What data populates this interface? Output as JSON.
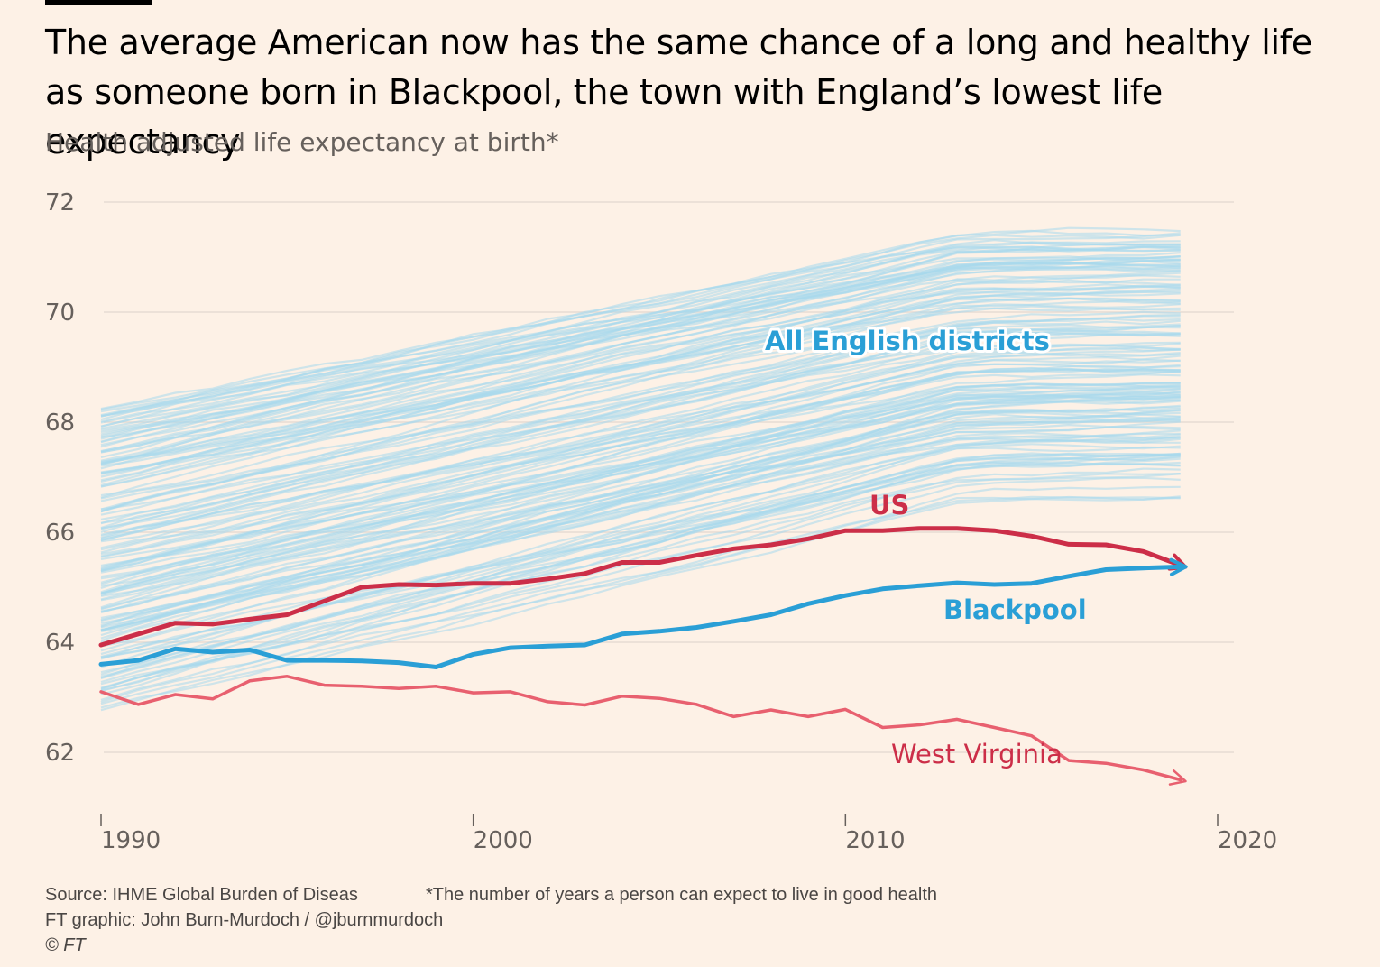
{
  "header": {
    "title": "The average American now has the same chance of a long and healthy life as someone born in Blackpool, the town with England’s lowest life expectancy",
    "subtitle": "Health adjusted life expectancy at birth*"
  },
  "footer": {
    "source": "Source: IHME Global Burden of Diseas",
    "note": "*The number of years a person can expect to live in good health",
    "credit": "FT graphic: John Burn-Murdoch / @jburnmurdoch",
    "copyright": "© FT"
  },
  "colors": {
    "background": "#FDF1E6",
    "districts": "#A8D8EC",
    "blackpool": "#2A9FD6",
    "us": "#CC2E48",
    "west_virginia": "#E8606F",
    "gridline": "#E6DCD4",
    "axis_text": "#66605C"
  },
  "chart_data": {
    "type": "line",
    "x": [
      1990,
      1991,
      1992,
      1993,
      1994,
      1995,
      1996,
      1997,
      1998,
      1999,
      2000,
      2001,
      2002,
      2003,
      2004,
      2005,
      2006,
      2007,
      2008,
      2009,
      2010,
      2011,
      2012,
      2013,
      2014,
      2015,
      2016,
      2017,
      2018,
      2019
    ],
    "xlim": [
      1990,
      2020
    ],
    "ylim": [
      61,
      72.5
    ],
    "x_ticks": [
      1990,
      2000,
      2010,
      2020
    ],
    "y_ticks": [
      62,
      64,
      66,
      68,
      70,
      72
    ],
    "grid": true,
    "series": [
      {
        "name": "US",
        "key": "us",
        "values": [
          63.95,
          64.15,
          64.35,
          64.33,
          64.42,
          64.5,
          64.75,
          65.0,
          65.05,
          65.04,
          65.07,
          65.07,
          65.15,
          65.25,
          65.45,
          65.45,
          65.58,
          65.7,
          65.77,
          65.88,
          66.03,
          66.03,
          66.07,
          66.07,
          66.03,
          65.93,
          65.78,
          65.77,
          65.65,
          65.4
        ]
      },
      {
        "name": "Blackpool",
        "key": "blackpool",
        "values": [
          63.6,
          63.67,
          63.88,
          63.82,
          63.86,
          63.67,
          63.67,
          63.66,
          63.63,
          63.55,
          63.78,
          63.9,
          63.93,
          63.95,
          64.15,
          64.2,
          64.27,
          64.38,
          64.5,
          64.7,
          64.85,
          64.97,
          65.03,
          65.08,
          65.05,
          65.07,
          65.2,
          65.32,
          65.35,
          65.37
        ]
      },
      {
        "name": "West Virginia",
        "key": "west_virginia",
        "values": [
          63.1,
          62.87,
          63.05,
          62.97,
          63.3,
          63.38,
          63.22,
          63.2,
          63.16,
          63.2,
          63.08,
          63.1,
          62.92,
          62.86,
          63.02,
          62.98,
          62.87,
          62.65,
          62.77,
          62.65,
          62.78,
          62.45,
          62.5,
          62.6,
          62.45,
          62.3,
          61.85,
          61.8,
          61.68,
          61.5
        ]
      }
    ],
    "districts": {
      "name": "All English districts",
      "count": 150,
      "range_1990": [
        62.7,
        68.2
      ],
      "range_2019": [
        66.3,
        71.8
      ]
    },
    "labels": {
      "districts": "All English districts",
      "us": "US",
      "blackpool": "Blackpool",
      "west_virginia": "West Virginia"
    }
  }
}
